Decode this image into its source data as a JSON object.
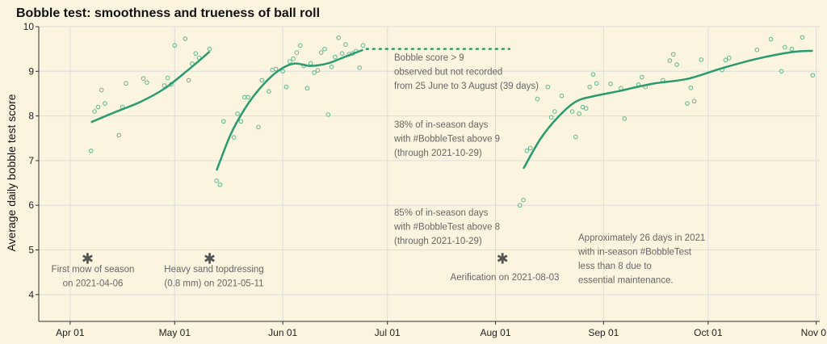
{
  "chart_data": {
    "type": "scatter",
    "title": "Bobble test: smoothness and trueness of ball roll",
    "ylabel": "Average daily bobble test score",
    "xlabel": "",
    "ylim": [
      3.4,
      10
    ],
    "y_ticks": [
      4,
      5,
      6,
      7,
      8,
      9,
      10
    ],
    "xlim": [
      "2021-03-23",
      "2021-11-02"
    ],
    "x_ticks": [
      {
        "date": "2021-04-01",
        "label": "Apr 01"
      },
      {
        "date": "2021-05-01",
        "label": "May 01"
      },
      {
        "date": "2021-06-01",
        "label": "Jun 01"
      },
      {
        "date": "2021-07-01",
        "label": "Jul 01"
      },
      {
        "date": "2021-08-01",
        "label": "Aug 01"
      },
      {
        "date": "2021-09-01",
        "label": "Sep 01"
      },
      {
        "date": "2021-10-01",
        "label": "Oct 01"
      },
      {
        "date": "2021-11-01",
        "label": "Nov 01"
      }
    ],
    "grid": true,
    "points": [
      [
        "2021-04-07",
        7.22
      ],
      [
        "2021-04-08",
        8.1
      ],
      [
        "2021-04-09",
        8.2
      ],
      [
        "2021-04-10",
        8.58
      ],
      [
        "2021-04-11",
        8.28
      ],
      [
        "2021-04-15",
        7.57
      ],
      [
        "2021-04-16",
        8.2
      ],
      [
        "2021-04-17",
        8.73
      ],
      [
        "2021-04-22",
        8.84
      ],
      [
        "2021-04-23",
        8.75
      ],
      [
        "2021-04-28",
        8.68
      ],
      [
        "2021-04-29",
        8.85
      ],
      [
        "2021-04-30",
        8.71
      ],
      [
        "2021-05-01",
        9.58
      ],
      [
        "2021-05-04",
        9.73
      ],
      [
        "2021-05-05",
        8.8
      ],
      [
        "2021-05-06",
        9.17
      ],
      [
        "2021-05-07",
        9.4
      ],
      [
        "2021-05-08",
        9.3
      ],
      [
        "2021-05-11",
        9.5
      ],
      [
        "2021-05-13",
        6.55
      ],
      [
        "2021-05-14",
        6.46
      ],
      [
        "2021-05-15",
        7.88
      ],
      [
        "2021-05-18",
        7.52
      ],
      [
        "2021-05-19",
        8.05
      ],
      [
        "2021-05-20",
        7.88
      ],
      [
        "2021-05-21",
        8.42
      ],
      [
        "2021-05-22",
        8.42
      ],
      [
        "2021-05-25",
        7.75
      ],
      [
        "2021-05-26",
        8.8
      ],
      [
        "2021-05-28",
        8.55
      ],
      [
        "2021-05-29",
        9.03
      ],
      [
        "2021-05-30",
        9.05
      ],
      [
        "2021-06-01",
        9.0
      ],
      [
        "2021-06-02",
        8.65
      ],
      [
        "2021-06-03",
        9.22
      ],
      [
        "2021-06-04",
        9.28
      ],
      [
        "2021-06-05",
        9.42
      ],
      [
        "2021-06-06",
        9.58
      ],
      [
        "2021-06-07",
        9.12
      ],
      [
        "2021-06-08",
        8.62
      ],
      [
        "2021-06-09",
        9.18
      ],
      [
        "2021-06-10",
        8.97
      ],
      [
        "2021-06-11",
        9.02
      ],
      [
        "2021-06-12",
        9.42
      ],
      [
        "2021-06-13",
        9.5
      ],
      [
        "2021-06-14",
        8.03
      ],
      [
        "2021-06-15",
        9.1
      ],
      [
        "2021-06-16",
        9.32
      ],
      [
        "2021-06-17",
        9.75
      ],
      [
        "2021-06-18",
        9.4
      ],
      [
        "2021-06-19",
        9.6
      ],
      [
        "2021-06-20",
        9.38
      ],
      [
        "2021-06-21",
        9.4
      ],
      [
        "2021-06-22",
        9.45
      ],
      [
        "2021-06-23",
        9.08
      ],
      [
        "2021-06-24",
        9.58
      ],
      [
        "2021-08-08",
        6.0
      ],
      [
        "2021-08-09",
        6.12
      ],
      [
        "2021-08-10",
        7.22
      ],
      [
        "2021-08-11",
        7.28
      ],
      [
        "2021-08-13",
        8.38
      ],
      [
        "2021-08-16",
        8.65
      ],
      [
        "2021-08-17",
        7.97
      ],
      [
        "2021-08-18",
        8.1
      ],
      [
        "2021-08-20",
        8.45
      ],
      [
        "2021-08-23",
        8.1
      ],
      [
        "2021-08-24",
        7.53
      ],
      [
        "2021-08-25",
        8.05
      ],
      [
        "2021-08-26",
        8.2
      ],
      [
        "2021-08-27",
        8.17
      ],
      [
        "2021-08-28",
        8.65
      ],
      [
        "2021-08-29",
        8.93
      ],
      [
        "2021-08-30",
        8.73
      ],
      [
        "2021-09-03",
        8.72
      ],
      [
        "2021-09-06",
        8.62
      ],
      [
        "2021-09-07",
        7.94
      ],
      [
        "2021-09-11",
        8.7
      ],
      [
        "2021-09-12",
        8.87
      ],
      [
        "2021-09-13",
        8.65
      ],
      [
        "2021-09-18",
        8.8
      ],
      [
        "2021-09-20",
        9.24
      ],
      [
        "2021-09-21",
        9.38
      ],
      [
        "2021-09-22",
        9.15
      ],
      [
        "2021-09-25",
        8.28
      ],
      [
        "2021-09-26",
        8.63
      ],
      [
        "2021-09-27",
        8.33
      ],
      [
        "2021-09-29",
        9.26
      ],
      [
        "2021-10-05",
        9.03
      ],
      [
        "2021-10-06",
        9.25
      ],
      [
        "2021-10-07",
        9.3
      ],
      [
        "2021-10-15",
        9.48
      ],
      [
        "2021-10-19",
        9.72
      ],
      [
        "2021-10-22",
        9.0
      ],
      [
        "2021-10-23",
        9.54
      ],
      [
        "2021-10-25",
        9.5
      ],
      [
        "2021-10-28",
        9.76
      ],
      [
        "2021-10-31",
        8.91
      ]
    ],
    "trend_segments": [
      [
        [
          "2021-04-07",
          7.86
        ],
        [
          "2021-04-14",
          8.09
        ],
        [
          "2021-04-21",
          8.31
        ],
        [
          "2021-04-28",
          8.61
        ],
        [
          "2021-05-05",
          9.04
        ],
        [
          "2021-05-11",
          9.44
        ]
      ],
      [
        [
          "2021-05-13",
          6.78
        ],
        [
          "2021-05-17",
          7.58
        ],
        [
          "2021-05-21",
          8.15
        ],
        [
          "2021-05-25",
          8.58
        ],
        [
          "2021-05-30",
          8.97
        ],
        [
          "2021-06-04",
          9.17
        ],
        [
          "2021-06-09",
          9.12
        ],
        [
          "2021-06-14",
          9.18
        ],
        [
          "2021-06-19",
          9.33
        ],
        [
          "2021-06-24",
          9.48
        ]
      ],
      [
        [
          "2021-08-09",
          6.82
        ],
        [
          "2021-08-14",
          7.5
        ],
        [
          "2021-08-19",
          7.98
        ],
        [
          "2021-08-24",
          8.32
        ],
        [
          "2021-08-29",
          8.44
        ],
        [
          "2021-09-05",
          8.55
        ],
        [
          "2021-09-15",
          8.72
        ],
        [
          "2021-09-25",
          8.83
        ],
        [
          "2021-10-05",
          9.07
        ],
        [
          "2021-10-15",
          9.28
        ],
        [
          "2021-10-25",
          9.43
        ],
        [
          "2021-10-31",
          9.46
        ]
      ]
    ],
    "gap_line": {
      "from": "2021-06-25",
      "to": "2021-08-05",
      "y": 9.5
    },
    "markers": [
      {
        "date": "2021-04-06",
        "y": 4.8
      },
      {
        "date": "2021-05-11",
        "y": 4.8
      },
      {
        "date": "2021-08-03",
        "y": 4.8
      }
    ],
    "annotations": [
      {
        "id": "ann-mow",
        "lines": [
          "First mow of season",
          "on 2021-04-06"
        ]
      },
      {
        "id": "ann-sand",
        "lines": [
          "Heavy sand topdressing",
          "(0.8 mm) on 2021-05-11"
        ]
      },
      {
        "id": "ann-aerification",
        "lines": [
          "Aerification on 2021-08-03"
        ]
      },
      {
        "id": "ann-gap",
        "lines": [
          "Bobble score > 9",
          "observed but not recorded",
          "from 25 June to 3 August (39 days)"
        ]
      },
      {
        "id": "ann-38",
        "lines": [
          "38% of in-season days",
          "with #BobbleTest above 9",
          "(through 2021-10-29)"
        ]
      },
      {
        "id": "ann-85",
        "lines": [
          "85% of in-season days",
          "with #BobbleTest above 8",
          "(through 2021-10-29)"
        ]
      },
      {
        "id": "ann-26",
        "lines": [
          "Approximately 26 days in 2021",
          "with in-season #BobbleTest",
          "less than 8 due to",
          "essential maintenance."
        ]
      }
    ]
  }
}
